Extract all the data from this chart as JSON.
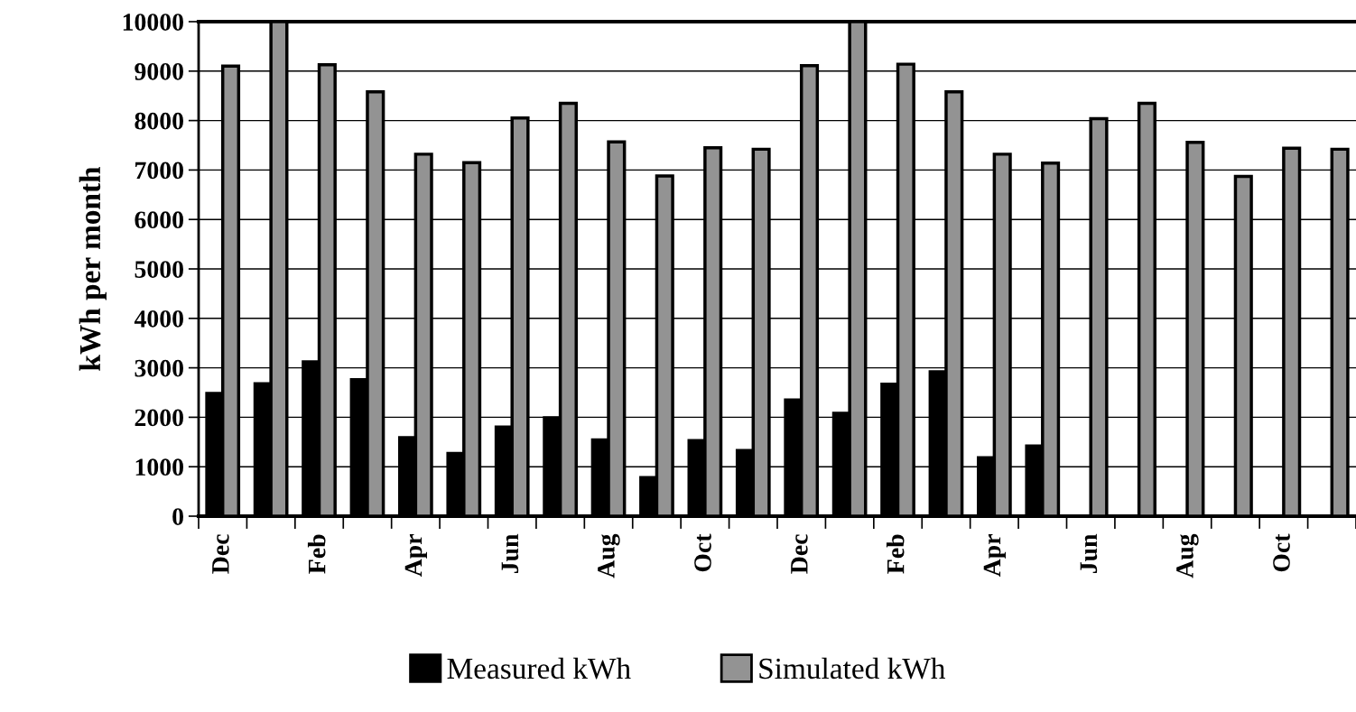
{
  "chart_data": {
    "type": "bar",
    "ylabel": "kWh per month",
    "categories": [
      "Dec",
      null,
      "Feb",
      null,
      "Apr",
      null,
      "Jun",
      null,
      "Aug",
      null,
      "Oct",
      null,
      "Dec",
      null,
      "Feb",
      null,
      "Apr",
      null,
      "Jun",
      null,
      "Aug",
      null,
      "Oct",
      null
    ],
    "series": [
      {
        "name": "Measured kWh",
        "color": "#000000",
        "values": [
          2480,
          2680,
          3120,
          2760,
          1590,
          1270,
          1800,
          1990,
          1540,
          780,
          1530,
          1330,
          2350,
          2080,
          2670,
          2920,
          1180,
          1420,
          null,
          null,
          null,
          null,
          null,
          null
        ]
      },
      {
        "name": "Simulated kWh",
        "color": "#939393",
        "values": [
          9100,
          10000,
          9130,
          8580,
          7320,
          7150,
          8050,
          8350,
          7570,
          6880,
          7450,
          7420,
          9110,
          10000,
          9140,
          8580,
          7320,
          7140,
          8040,
          8350,
          7560,
          6870,
          7440,
          7420
        ]
      }
    ],
    "ylim": [
      0,
      10000
    ],
    "yticks": [
      0,
      1000,
      2000,
      3000,
      4000,
      5000,
      6000,
      7000,
      8000,
      9000,
      10000
    ],
    "grid": "y",
    "legend": "bottom"
  }
}
